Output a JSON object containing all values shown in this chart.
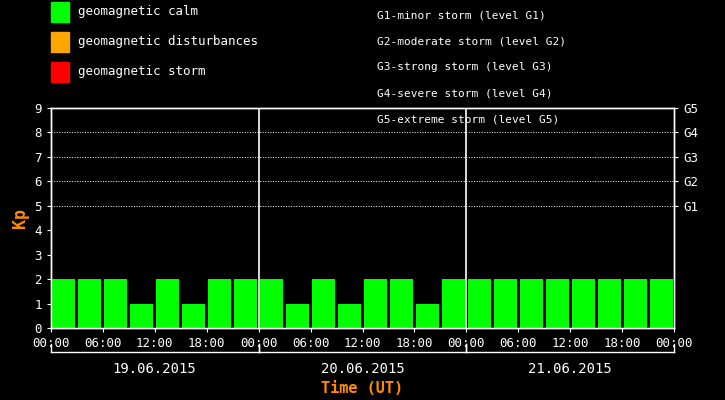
{
  "xlabel": "Time (UT)",
  "ylabel": "Kp",
  "background_color": "#000000",
  "bar_color_calm": "#00ff00",
  "bar_color_disturbance": "#ffa500",
  "bar_color_storm": "#ff0000",
  "text_color": "#ffffff",
  "label_color_kp": "#ff8c00",
  "label_color_time": "#ff8c00",
  "ylim": [
    0,
    9
  ],
  "yticks": [
    0,
    1,
    2,
    3,
    4,
    5,
    6,
    7,
    8,
    9
  ],
  "right_yticks": [
    5,
    6,
    7,
    8,
    9
  ],
  "right_yticklabels": [
    "G1",
    "G2",
    "G3",
    "G4",
    "G5"
  ],
  "legend_items": [
    {
      "label": "geomagnetic calm",
      "color": "#00ff00"
    },
    {
      "label": "geomagnetic disturbances",
      "color": "#ffa500"
    },
    {
      "label": "geomagnetic storm",
      "color": "#ff0000"
    }
  ],
  "storm_legend": [
    "G1-minor storm (level G1)",
    "G2-moderate storm (level G2)",
    "G3-strong storm (level G3)",
    "G4-severe storm (level G4)",
    "G5-extreme storm (level G5)"
  ],
  "days": [
    "19.06.2015",
    "20.06.2015",
    "21.06.2015"
  ],
  "kp_values": [
    [
      2,
      2,
      2,
      1,
      2,
      1,
      2,
      2
    ],
    [
      2,
      1,
      2,
      1,
      2,
      2,
      1,
      2
    ],
    [
      2,
      2,
      2,
      2,
      2,
      2,
      2,
      2
    ]
  ],
  "bar_width": 2.6,
  "dot_grid_levels": [
    5,
    6,
    7,
    8,
    9
  ],
  "grid_color": "#ffffff",
  "separator_color": "#ffffff",
  "font_family": "monospace",
  "font_size_ticks": 9,
  "font_size_legend": 9,
  "font_size_storm": 8,
  "font_size_day": 10,
  "font_size_ylabel": 12
}
